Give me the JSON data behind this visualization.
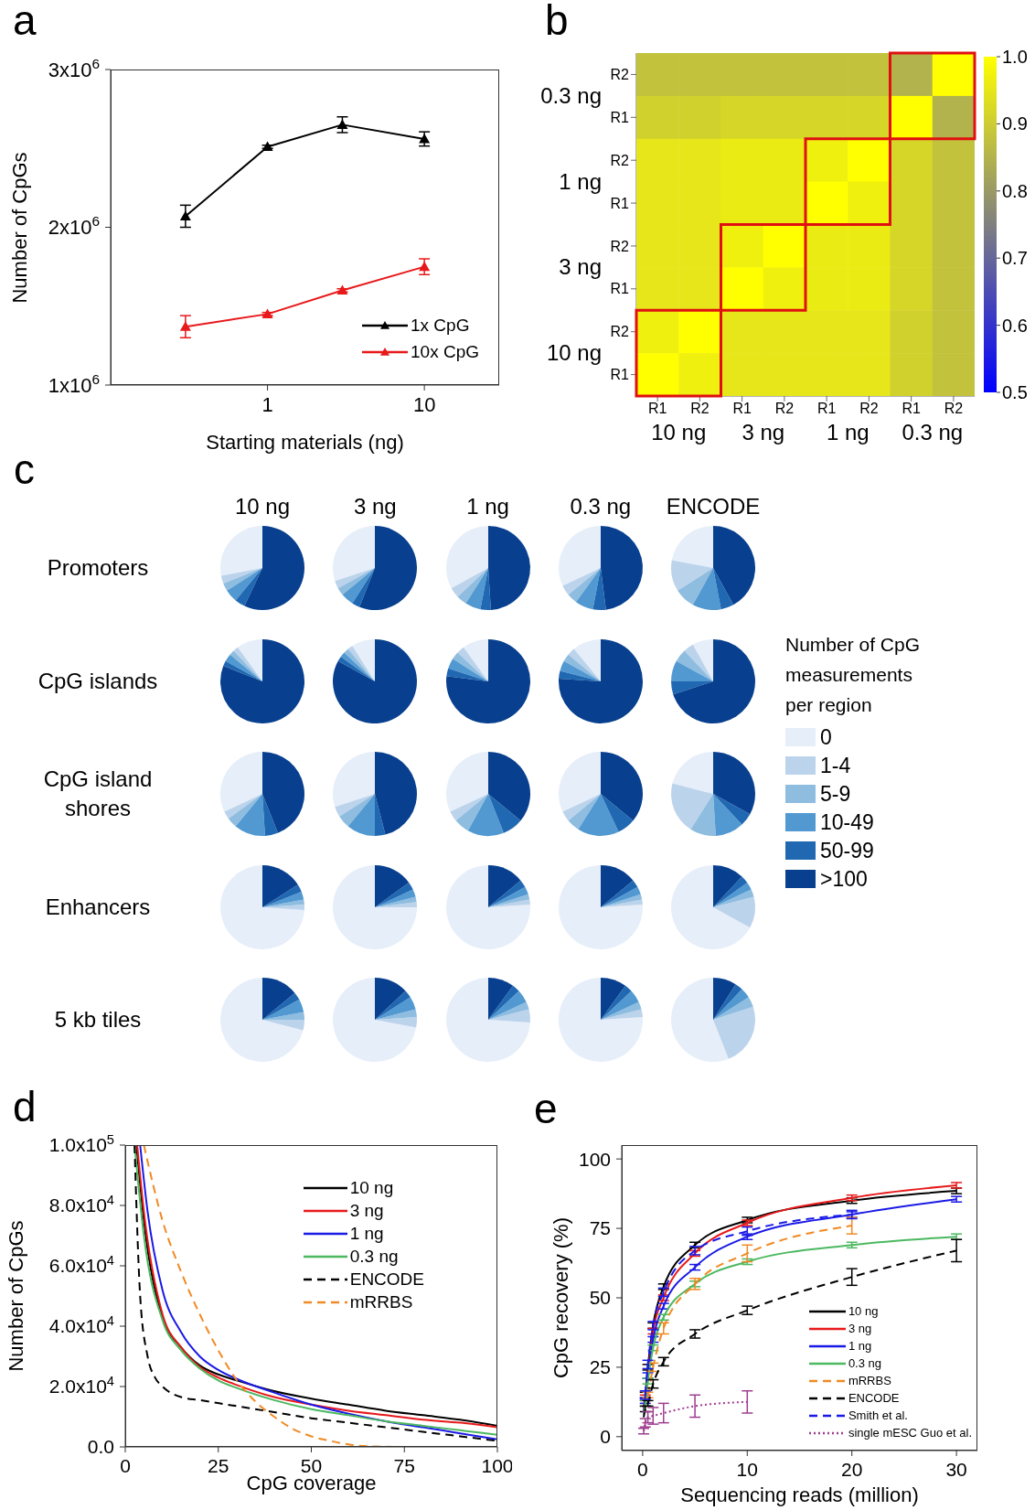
{
  "chart_data": [
    {
      "type": "line",
      "title": "a",
      "xlabel": "Starting materials (ng)",
      "ylabel": "Number of CpGs",
      "x": [
        0.3,
        1,
        3,
        10
      ],
      "xlim": [
        0.1,
        30
      ],
      "xticks": [
        1,
        10
      ],
      "log": "x",
      "ylim": [
        1000000,
        3000000
      ],
      "yticks": [
        {
          "value": 1000000,
          "label": "1x10$^{6}$"
        },
        {
          "value": 2000000,
          "label": "2x10$^{6}$"
        },
        {
          "value": 3000000,
          "label": "3x10$^{6}$"
        }
      ],
      "marker": "triangle",
      "legend": "bottom right",
      "series": [
        {
          "name": "1x CpG",
          "color": "#000000",
          "values": [
            2070000,
            2510000,
            2650000,
            2560000
          ],
          "errors": [
            70000,
            10000,
            50000,
            45000
          ]
        },
        {
          "name": "10x CpG",
          "color": "#e8191b",
          "values": [
            1370000,
            1450000,
            1600000,
            1750000
          ],
          "errors": [
            70000,
            10000,
            10000,
            50000
          ]
        }
      ]
    },
    {
      "type": "heatmap",
      "title": "b",
      "categories": [
        "R1",
        "R2",
        "R1",
        "R2",
        "R1",
        "R2",
        "R1",
        "R2"
      ],
      "y_categories": [
        "R2",
        "R1",
        "R2",
        "R1",
        "R2",
        "R1",
        "R2",
        "R1"
      ],
      "annotations": [
        "10 ng",
        "3 ng",
        "1 ng",
        "0.3 ng",
        "0.3 ng",
        "1 ng",
        "3 ng",
        "10 ng"
      ],
      "clim": [
        0.5,
        1
      ],
      "cticks": [
        0.5,
        0.6,
        0.7,
        0.8,
        0.9,
        {
          "value": 1,
          "label": "1.0"
        }
      ],
      "cells": [
        [
          0.88,
          0.88,
          0.88,
          0.88,
          0.88,
          0.88,
          0.85,
          1
        ],
        [
          0.91,
          0.91,
          0.92,
          0.92,
          0.92,
          0.92,
          1,
          0.85
        ],
        [
          0.95,
          0.95,
          0.96,
          0.96,
          0.97,
          1,
          0.92,
          0.88
        ],
        [
          0.95,
          0.95,
          0.96,
          0.96,
          1,
          0.97,
          0.92,
          0.88
        ],
        [
          0.95,
          0.95,
          0.97,
          1,
          0.96,
          0.96,
          0.92,
          0.88
        ],
        [
          0.95,
          0.95,
          1,
          0.97,
          0.96,
          0.96,
          0.92,
          0.88
        ],
        [
          0.97,
          1,
          0.95,
          0.95,
          0.95,
          0.95,
          0.91,
          0.88
        ],
        [
          1,
          0.97,
          0.95,
          0.95,
          0.95,
          0.95,
          0.91,
          0.88
        ]
      ]
    },
    {
      "type": "pie",
      "title": "10 ng",
      "ylabel": "Promoters",
      "annotations": [
        "c"
      ],
      "categories": [
        null,
        null,
        null,
        null,
        null,
        null
      ],
      "values": [
        28,
        3,
        3,
        5,
        4,
        57
      ],
      "colors": [
        "#e6eef9",
        "#bcd3ec",
        "#8fbde0",
        "#5299d2",
        "#2068b2",
        "#08408f"
      ]
    },
    {
      "type": "pie",
      "title": "3 ng",
      "categories": [
        null,
        null,
        null,
        null,
        null,
        null
      ],
      "values": [
        30,
        3,
        3,
        5,
        3,
        56
      ],
      "colors": [
        "#e6eef9",
        "#bcd3ec",
        "#8fbde0",
        "#5299d2",
        "#2068b2",
        "#08408f"
      ]
    },
    {
      "type": "pie",
      "title": "1 ng",
      "categories": [
        null,
        null,
        null,
        null,
        null,
        null
      ],
      "values": [
        33,
        4,
        4,
        6,
        4,
        49
      ],
      "colors": [
        "#e6eef9",
        "#bcd3ec",
        "#8fbde0",
        "#5299d2",
        "#2068b2",
        "#08408f"
      ]
    },
    {
      "type": "pie",
      "title": "0.3 ng",
      "categories": [
        null,
        null,
        null,
        null,
        null,
        null
      ],
      "values": [
        32,
        4,
        4,
        7,
        5,
        48
      ],
      "colors": [
        "#e6eef9",
        "#bcd3ec",
        "#8fbde0",
        "#5299d2",
        "#2068b2",
        "#08408f"
      ]
    },
    {
      "type": "pie",
      "title": "ENCODE",
      "categories": [
        null,
        null,
        null,
        null,
        null,
        null
      ],
      "values": [
        22,
        12,
        8,
        11,
        5,
        42
      ],
      "colors": [
        "#e6eef9",
        "#bcd3ec",
        "#8fbde0",
        "#5299d2",
        "#2068b2",
        "#08408f"
      ]
    },
    {
      "type": "pie",
      "ylabel": "CpG islands",
      "categories": [
        null,
        null,
        null,
        null,
        null,
        null
      ],
      "values": [
        10,
        2,
        2,
        3,
        2,
        81
      ],
      "colors": [
        "#e6eef9",
        "#bcd3ec",
        "#8fbde0",
        "#5299d2",
        "#2068b2",
        "#08408f"
      ]
    },
    {
      "type": "pie",
      "categories": [
        null,
        null,
        null,
        null,
        null,
        null
      ],
      "values": [
        9,
        2,
        2,
        2,
        2,
        83
      ],
      "colors": [
        "#e6eef9",
        "#bcd3ec",
        "#8fbde0",
        "#5299d2",
        "#2068b2",
        "#08408f"
      ]
    },
    {
      "type": "pie",
      "categories": [
        null,
        null,
        null,
        null,
        null,
        null
      ],
      "values": [
        10,
        3,
        3,
        4,
        3,
        77
      ],
      "colors": [
        "#e6eef9",
        "#bcd3ec",
        "#8fbde0",
        "#5299d2",
        "#2068b2",
        "#08408f"
      ]
    },
    {
      "type": "pie",
      "categories": [
        null,
        null,
        null,
        null,
        null,
        null
      ],
      "values": [
        11,
        3,
        3,
        4,
        3,
        76
      ],
      "colors": [
        "#e6eef9",
        "#bcd3ec",
        "#8fbde0",
        "#5299d2",
        "#2068b2",
        "#08408f"
      ]
    },
    {
      "type": "pie",
      "legend": "right",
      "legend_title": "Number of CpG measurements per region",
      "categories": [
        "0",
        "1-4",
        "5-9",
        "10-49",
        "50-99",
        ">100"
      ],
      "values": [
        8,
        4,
        5,
        8,
        5,
        70
      ],
      "colors": [
        "#e6eef9",
        "#bcd3ec",
        "#8fbde0",
        "#5299d2",
        "#2068b2",
        "#08408f"
      ]
    },
    {
      "type": "pie",
      "ylabel": "CpG island shores",
      "categories": [
        null,
        null,
        null,
        null,
        null,
        null
      ],
      "values": [
        32,
        3,
        4,
        12,
        5,
        44
      ],
      "colors": [
        "#e6eef9",
        "#bcd3ec",
        "#8fbde0",
        "#5299d2",
        "#2068b2",
        "#08408f"
      ]
    },
    {
      "type": "pie",
      "categories": [
        null,
        null,
        null,
        null,
        null,
        null
      ],
      "values": [
        30,
        4,
        5,
        11,
        4,
        46
      ],
      "colors": [
        "#e6eef9",
        "#bcd3ec",
        "#8fbde0",
        "#5299d2",
        "#2068b2",
        "#08408f"
      ]
    },
    {
      "type": "pie",
      "categories": [
        null,
        null,
        null,
        null,
        null,
        null
      ],
      "values": [
        32,
        4,
        6,
        14,
        8,
        36
      ],
      "colors": [
        "#e6eef9",
        "#bcd3ec",
        "#8fbde0",
        "#5299d2",
        "#2068b2",
        "#08408f"
      ]
    },
    {
      "type": "pie",
      "categories": [
        null,
        null,
        null,
        null,
        null,
        null
      ],
      "values": [
        32,
        4,
        5,
        16,
        7,
        36
      ],
      "colors": [
        "#e6eef9",
        "#bcd3ec",
        "#8fbde0",
        "#5299d2",
        "#2068b2",
        "#08408f"
      ]
    },
    {
      "type": "pie",
      "categories": [
        null,
        null,
        null,
        null,
        null,
        null
      ],
      "values": [
        21,
        20,
        10,
        11,
        5,
        33
      ],
      "colors": [
        "#e6eef9",
        "#bcd3ec",
        "#8fbde0",
        "#5299d2",
        "#2068b2",
        "#08408f"
      ]
    },
    {
      "type": "pie",
      "ylabel": "Enhancers",
      "categories": [
        null,
        null,
        null,
        null,
        null,
        null
      ],
      "values": [
        74,
        2,
        2,
        3,
        3,
        16
      ],
      "colors": [
        "#e6eef9",
        "#bcd3ec",
        "#8fbde0",
        "#5299d2",
        "#2068b2",
        "#08408f"
      ]
    },
    {
      "type": "pie",
      "categories": [
        null,
        null,
        null,
        null,
        null,
        null
      ],
      "values": [
        75,
        2,
        2,
        3,
        3,
        15
      ],
      "colors": [
        "#e6eef9",
        "#bcd3ec",
        "#8fbde0",
        "#5299d2",
        "#2068b2",
        "#08408f"
      ]
    },
    {
      "type": "pie",
      "categories": [
        null,
        null,
        null,
        null,
        null,
        null
      ],
      "values": [
        76,
        2,
        2,
        3,
        3,
        14
      ],
      "colors": [
        "#e6eef9",
        "#bcd3ec",
        "#8fbde0",
        "#5299d2",
        "#2068b2",
        "#08408f"
      ]
    },
    {
      "type": "pie",
      "categories": [
        null,
        null,
        null,
        null,
        null,
        null
      ],
      "values": [
        76,
        2,
        2,
        3,
        3,
        14
      ],
      "colors": [
        "#e6eef9",
        "#bcd3ec",
        "#8fbde0",
        "#5299d2",
        "#2068b2",
        "#08408f"
      ]
    },
    {
      "type": "pie",
      "categories": [
        null,
        null,
        null,
        null,
        null,
        null
      ],
      "values": [
        67,
        12,
        3,
        3,
        3,
        12
      ],
      "colors": [
        "#e6eef9",
        "#bcd3ec",
        "#8fbde0",
        "#5299d2",
        "#2068b2",
        "#08408f"
      ]
    },
    {
      "type": "pie",
      "ylabel": "5 kb tiles",
      "categories": [
        null,
        null,
        null,
        null,
        null,
        null
      ],
      "values": [
        71,
        4,
        3,
        5,
        3,
        14
      ],
      "colors": [
        "#e6eef9",
        "#bcd3ec",
        "#8fbde0",
        "#5299d2",
        "#2068b2",
        "#08408f"
      ]
    },
    {
      "type": "pie",
      "categories": [
        null,
        null,
        null,
        null,
        null,
        null
      ],
      "values": [
        72,
        4,
        3,
        5,
        3,
        13
      ],
      "colors": [
        "#e6eef9",
        "#bcd3ec",
        "#8fbde0",
        "#5299d2",
        "#2068b2",
        "#08408f"
      ]
    },
    {
      "type": "pie",
      "categories": [
        null,
        null,
        null,
        null,
        null,
        null
      ],
      "values": [
        74,
        5,
        3,
        5,
        3,
        10
      ],
      "colors": [
        "#e6eef9",
        "#bcd3ec",
        "#8fbde0",
        "#5299d2",
        "#2068b2",
        "#08408f"
      ]
    },
    {
      "type": "pie",
      "categories": [
        null,
        null,
        null,
        null,
        null,
        null
      ],
      "values": [
        76,
        3,
        3,
        5,
        3,
        10
      ],
      "colors": [
        "#e6eef9",
        "#bcd3ec",
        "#8fbde0",
        "#5299d2",
        "#2068b2",
        "#08408f"
      ]
    },
    {
      "type": "pie",
      "categories": [
        null,
        null,
        null,
        null,
        null,
        null
      ],
      "values": [
        56,
        24,
        4,
        4,
        3,
        9
      ],
      "colors": [
        "#e6eef9",
        "#bcd3ec",
        "#8fbde0",
        "#5299d2",
        "#2068b2",
        "#08408f"
      ]
    },
    {
      "type": "line",
      "title": "d",
      "xlabel": "CpG coverage",
      "ylabel": "Number of CpGs",
      "xlim": [
        0,
        100
      ],
      "xticks": [
        0,
        25,
        50,
        75,
        100
      ],
      "ylim": [
        0,
        100000
      ],
      "yticks": [
        {
          "value": 0,
          "label": "0.0"
        },
        {
          "value": 20000,
          "label": "2.0x10$^{4}$"
        },
        {
          "value": 40000,
          "label": "4.0x10$^{4}$"
        },
        {
          "value": 60000,
          "label": "6.0x10$^{4}$"
        },
        {
          "value": 80000,
          "label": "8.0x10$^{4}$"
        },
        {
          "value": 100000,
          "label": "1.0x10$^{5}$"
        }
      ],
      "legend": "top right",
      "series": [
        {
          "name": "10 ng",
          "color": "#000000",
          "x": [
            3,
            5,
            10,
            15,
            20,
            25,
            30,
            40,
            50,
            60,
            70,
            80,
            90,
            100
          ],
          "values": [
            100000,
            75000,
            43000,
            33000,
            27000,
            24000,
            22000,
            18500,
            16000,
            14000,
            12000,
            10500,
            9000,
            7000
          ]
        },
        {
          "name": "3 ng",
          "color": "#e8191b",
          "x": [
            3.2,
            5,
            10,
            15,
            20,
            25,
            30,
            40,
            50,
            60,
            70,
            80,
            90,
            100
          ],
          "values": [
            100000,
            78000,
            44000,
            33000,
            26500,
            23000,
            20500,
            16500,
            14000,
            12000,
            10500,
            9000,
            8000,
            6500
          ]
        },
        {
          "name": "1 ng",
          "color": "#1a1ae6",
          "x": [
            4,
            6,
            10,
            15,
            20,
            25,
            30,
            40,
            50,
            60,
            70,
            80,
            90,
            100
          ],
          "values": [
            100000,
            78000,
            52000,
            38000,
            30000,
            25500,
            22500,
            18000,
            14000,
            11000,
            8500,
            6500,
            4500,
            2500
          ]
        },
        {
          "name": "0.3 ng",
          "color": "#4cb860",
          "x": [
            2.5,
            5,
            10,
            15,
            20,
            25,
            30,
            40,
            50,
            60,
            70,
            80,
            90,
            100
          ],
          "values": [
            100000,
            70000,
            42000,
            32000,
            26000,
            22000,
            19500,
            15500,
            12500,
            10500,
            8500,
            7000,
            5500,
            4000
          ]
        },
        {
          "name": "ENCODE",
          "color": "#000000",
          "line_style": "dashed",
          "x": [
            2.5,
            3,
            4,
            6,
            8,
            10,
            15,
            20,
            30,
            40,
            50,
            60,
            70,
            80,
            90,
            100
          ],
          "values": [
            100000,
            80000,
            50000,
            30000,
            23000,
            20000,
            16500,
            15500,
            13500,
            11500,
            9500,
            8000,
            6500,
            5000,
            3500,
            2000
          ]
        },
        {
          "name": "mRRBS",
          "color": "#f08a24",
          "line_style": "dashed",
          "x": [
            5,
            10,
            15,
            20,
            25,
            30,
            35,
            40,
            45,
            50,
            55,
            60,
            65,
            75,
            100
          ],
          "values": [
            100000,
            75000,
            58000,
            44000,
            32000,
            22000,
            15000,
            10000,
            6000,
            3500,
            2000,
            800,
            200,
            0,
            0
          ]
        }
      ]
    },
    {
      "type": "line",
      "title": "e",
      "xlabel": "Sequencing reads (million)",
      "ylabel": "CpG recovery (%)",
      "xlim": [
        -2,
        32
      ],
      "xticks": [
        0,
        10,
        20,
        30
      ],
      "ylim": [
        -5,
        105
      ],
      "yticks": [
        0,
        25,
        50,
        75,
        100
      ],
      "legend": "bottom right",
      "series": [
        {
          "name": "10 ng",
          "color": "#000000",
          "x": [
            0.1,
            0.25,
            0.5,
            1,
            2,
            5,
            10,
            20,
            30
          ],
          "values": [
            10,
            15,
            25,
            40,
            54,
            69,
            78,
            85,
            88.5
          ],
          "errors": [
            null,
            1,
            1,
            1,
            1,
            1,
            1,
            1,
            1
          ]
        },
        {
          "name": "3 ng",
          "color": "#e8191b",
          "x": [
            0.1,
            0.25,
            0.5,
            1,
            2,
            5,
            10,
            20,
            30
          ],
          "values": [
            10,
            14,
            23,
            38,
            50,
            66,
            77,
            86,
            90.5
          ],
          "errors": [
            null,
            1,
            null,
            1,
            1,
            1,
            1,
            1,
            1
          ]
        },
        {
          "name": "1 ng",
          "color": "#1a1ae6",
          "x": [
            0.1,
            0.25,
            0.5,
            1,
            2,
            5,
            10,
            20,
            30
          ],
          "values": [
            9,
            13,
            22,
            35,
            47,
            61,
            72,
            80,
            85.5
          ],
          "errors": [
            null,
            1,
            1,
            1,
            1,
            1,
            1,
            1,
            1
          ]
        },
        {
          "name": "0.3 ng",
          "color": "#4cb860",
          "x": [
            0.1,
            0.25,
            0.5,
            1,
            2,
            5,
            10,
            20,
            30
          ],
          "values": [
            8,
            12,
            20,
            32,
            43,
            55,
            63,
            69,
            72
          ],
          "errors": [
            null,
            1,
            1,
            1,
            1,
            1,
            1,
            1,
            1
          ]
        },
        {
          "name": "mRRBS",
          "color": "#f08a24",
          "line_style": "dashed",
          "x": [
            0.5,
            1,
            2,
            5,
            10,
            20
          ],
          "values": [
            15,
            25,
            39,
            55,
            66,
            76
          ],
          "errors": [
            1,
            1.5,
            2,
            2,
            3,
            3
          ]
        },
        {
          "name": "ENCODE",
          "color": "#000000",
          "line_style": "dashed",
          "x": [
            0.1,
            0.25,
            0.5,
            1,
            2,
            5,
            10,
            20,
            30
          ],
          "values": [
            7,
            10,
            12,
            19,
            27,
            37,
            45.5,
            57.5,
            67
          ],
          "errors": [
            null,
            1,
            1,
            1.5,
            1.5,
            1.5,
            1.5,
            3,
            4
          ]
        },
        {
          "name": "Smith et al.",
          "color": "#1a1ae6",
          "line_style": "dashed",
          "x": [
            0.25,
            0.5,
            1,
            2,
            5,
            10,
            20
          ],
          "values": [
            15,
            26,
            40,
            52,
            67,
            74,
            80
          ],
          "errors": [
            1.5,
            1.5,
            1.5,
            1.5,
            1.5,
            1.5,
            1.5
          ]
        },
        {
          "name": "single mESC Guo et al.",
          "color": "#9e3d8f",
          "line_style": "dotted",
          "x": [
            0.1,
            0.25,
            0.5,
            1,
            2,
            5,
            10
          ],
          "values": [
            2,
            5,
            7,
            7.5,
            8.5,
            11,
            12.5
          ],
          "errors": [
            1,
            1.5,
            2,
            3,
            3.5,
            4,
            4
          ]
        }
      ]
    }
  ]
}
